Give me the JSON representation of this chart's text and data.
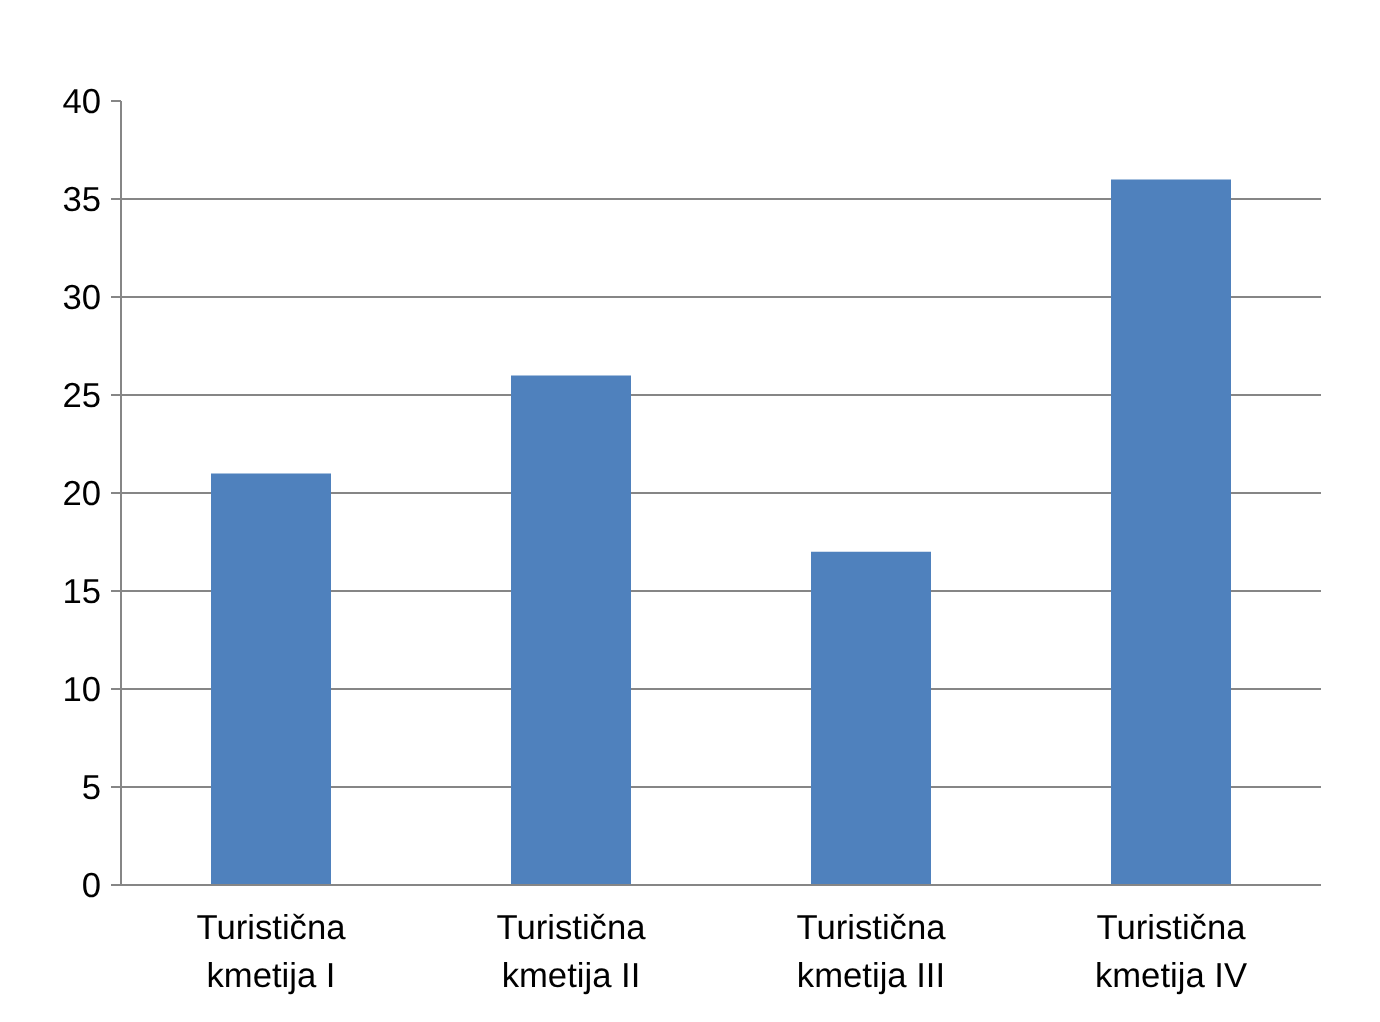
{
  "chart_data": {
    "type": "bar",
    "categories": [
      "Turistična kmetija I",
      "Turistična kmetija II",
      "Turistična kmetija III",
      "Turistična kmetija IV"
    ],
    "values": [
      21,
      26,
      17,
      36
    ],
    "color": "#4f81bd",
    "ylim": [
      0,
      40
    ],
    "yticks": [
      0,
      5,
      10,
      15,
      20,
      25,
      30,
      35,
      40
    ],
    "grid": "y"
  }
}
